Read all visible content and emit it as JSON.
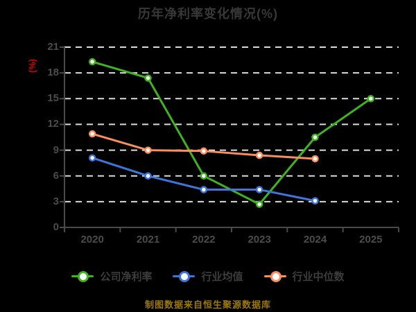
{
  "window": {
    "background": "#000000"
  },
  "chart": {
    "title": "历年净利率变化情况(%)",
    "ylabel": "(%)",
    "footer": "制图数据来自恒生聚源数据库",
    "title_color": "#383838",
    "ylabel_color": "#d60000",
    "footer_color": "#9c7a00",
    "axis_color": "#4a4a4a",
    "tick_label_color": "#4c4c4c",
    "grid_color": "#dcdcdc",
    "background_color": "#000000"
  },
  "chart_data": {
    "type": "line",
    "title": "历年净利率变化情况(%)",
    "xlabel": "",
    "ylabel": "(%)",
    "categories": [
      "2020",
      "2021",
      "2022",
      "2023",
      "2024",
      "2025"
    ],
    "series": [
      {
        "name": "公司净利率",
        "color": "#3fb41e",
        "marker": "circle-white-fill",
        "values": [
          19.3,
          17.4,
          6.0,
          2.7,
          10.5,
          15.0
        ]
      },
      {
        "name": "行业均值",
        "color": "#3d76dd",
        "marker": "circle-white-fill",
        "values": [
          8.1,
          6.0,
          4.4,
          4.4,
          3.1,
          null
        ]
      },
      {
        "name": "行业中位数",
        "color": "#f98e5e",
        "marker": "circle-white-fill",
        "values": [
          10.9,
          9.0,
          8.9,
          8.4,
          8.0,
          null
        ]
      }
    ],
    "ylim": [
      0,
      21
    ],
    "ytick_step": 3,
    "yticks": [
      0,
      3,
      6,
      9,
      12,
      15,
      18,
      21
    ],
    "grid": true,
    "grid_style": "dashed",
    "legend_position": "bottom",
    "annotation": "制图数据来自恒生聚源数据库"
  }
}
